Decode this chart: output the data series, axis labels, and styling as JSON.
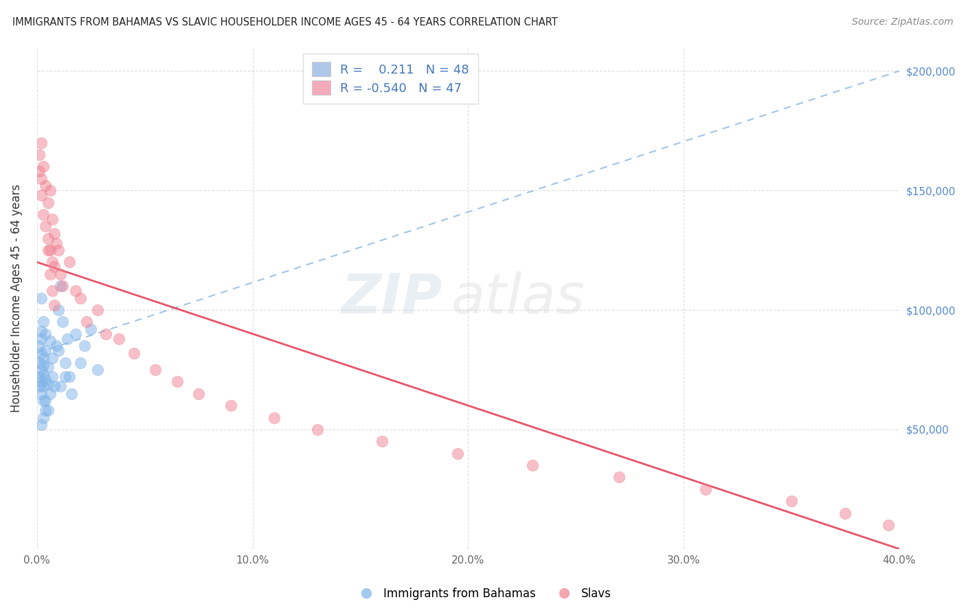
{
  "title": "IMMIGRANTS FROM BAHAMAS VS SLAVIC HOUSEHOLDER INCOME AGES 45 - 64 YEARS CORRELATION CHART",
  "source": "Source: ZipAtlas.com",
  "ylabel": "Householder Income Ages 45 - 64 years",
  "xlim": [
    0.0,
    0.4
  ],
  "ylim": [
    0,
    210000
  ],
  "xticks": [
    0.0,
    0.1,
    0.2,
    0.3,
    0.4
  ],
  "xtick_labels": [
    "0.0%",
    "10.0%",
    "20.0%",
    "30.0%",
    "40.0%"
  ],
  "yticks": [
    0,
    50000,
    100000,
    150000,
    200000
  ],
  "ytick_labels": [
    "",
    "$50,000",
    "$100,000",
    "$150,000",
    "$200,000"
  ],
  "r_bahamas": 0.211,
  "n_bahamas": 48,
  "r_slavs": -0.54,
  "n_slavs": 47,
  "blue_color": "#7EB3E8",
  "pink_color": "#F08090",
  "legend_blue_fill": "#AEC6E8",
  "legend_pink_fill": "#F4AABB",
  "trend_blue_color": "#7AABDD",
  "trend_pink_color": "#E8405A",
  "blue_scatter_x": [
    0.001,
    0.001,
    0.001,
    0.001,
    0.002,
    0.002,
    0.002,
    0.002,
    0.002,
    0.002,
    0.003,
    0.003,
    0.003,
    0.003,
    0.003,
    0.004,
    0.004,
    0.004,
    0.004,
    0.005,
    0.005,
    0.005,
    0.006,
    0.006,
    0.007,
    0.007,
    0.008,
    0.009,
    0.01,
    0.011,
    0.012,
    0.013,
    0.014,
    0.015,
    0.016,
    0.018,
    0.02,
    0.022,
    0.025,
    0.028,
    0.01,
    0.011,
    0.013,
    0.002,
    0.003,
    0.004,
    0.003,
    0.002
  ],
  "blue_scatter_y": [
    78000,
    85000,
    72000,
    68000,
    82000,
    91000,
    75000,
    65000,
    88000,
    70000,
    95000,
    80000,
    73000,
    68000,
    77000,
    83000,
    71000,
    62000,
    90000,
    76000,
    69000,
    58000,
    87000,
    65000,
    80000,
    72000,
    68000,
    85000,
    100000,
    110000,
    95000,
    78000,
    88000,
    72000,
    65000,
    90000,
    78000,
    85000,
    92000,
    75000,
    83000,
    68000,
    72000,
    105000,
    62000,
    58000,
    55000,
    52000
  ],
  "pink_scatter_x": [
    0.001,
    0.001,
    0.002,
    0.002,
    0.002,
    0.003,
    0.003,
    0.004,
    0.004,
    0.005,
    0.005,
    0.006,
    0.006,
    0.007,
    0.007,
    0.008,
    0.008,
    0.009,
    0.01,
    0.011,
    0.012,
    0.015,
    0.018,
    0.02,
    0.023,
    0.028,
    0.032,
    0.038,
    0.045,
    0.055,
    0.065,
    0.075,
    0.09,
    0.11,
    0.13,
    0.16,
    0.195,
    0.23,
    0.27,
    0.31,
    0.35,
    0.375,
    0.395,
    0.005,
    0.006,
    0.007,
    0.008
  ],
  "pink_scatter_y": [
    165000,
    158000,
    170000,
    155000,
    148000,
    160000,
    140000,
    152000,
    135000,
    145000,
    130000,
    150000,
    125000,
    138000,
    120000,
    132000,
    118000,
    128000,
    125000,
    115000,
    110000,
    120000,
    108000,
    105000,
    95000,
    100000,
    90000,
    88000,
    82000,
    75000,
    70000,
    65000,
    60000,
    55000,
    50000,
    45000,
    40000,
    35000,
    30000,
    25000,
    20000,
    15000,
    10000,
    125000,
    115000,
    108000,
    102000
  ]
}
